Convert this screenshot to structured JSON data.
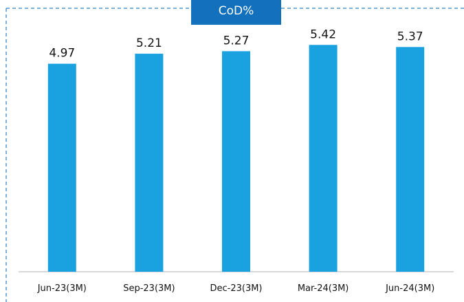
{
  "title": "CoD%",
  "colors": {
    "bar": "#19a1e0",
    "title_box": "#1270bd",
    "frame_dash": "#2a7fc1",
    "axis": "#b0b0b0"
  },
  "chart_data": {
    "type": "bar",
    "categories": [
      "Jun-23(3M)",
      "Sep-23(3M)",
      "Dec-23(3M)",
      "Mar-24(3M)",
      "Jun-24(3M)"
    ],
    "values": [
      4.97,
      5.21,
      5.27,
      5.42,
      5.37
    ],
    "data_labels": [
      "4.97",
      "5.21",
      "5.27",
      "5.42",
      "5.37"
    ],
    "title": "CoD%",
    "xlabel": "",
    "ylabel": "",
    "ylim": [
      0,
      6
    ],
    "grid": false,
    "legend": "none"
  }
}
